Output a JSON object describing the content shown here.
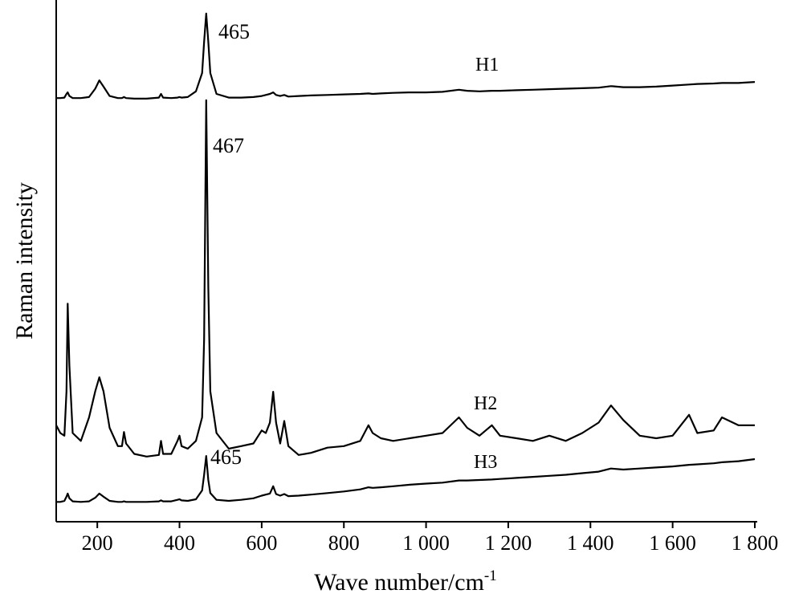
{
  "chart_data": {
    "type": "line",
    "x_label": {
      "text": "Wave number/cm",
      "superscript": "-1"
    },
    "y_label": "Raman intensity",
    "x": [
      100,
      110,
      120,
      125,
      128,
      132,
      140,
      160,
      180,
      195,
      205,
      215,
      230,
      250,
      260,
      265,
      270,
      290,
      320,
      350,
      355,
      360,
      380,
      395,
      400,
      405,
      420,
      440,
      455,
      460,
      465,
      470,
      475,
      490,
      520,
      550,
      580,
      600,
      610,
      620,
      628,
      635,
      645,
      655,
      665,
      690,
      720,
      760,
      800,
      840,
      860,
      870,
      890,
      920,
      960,
      1000,
      1040,
      1080,
      1100,
      1130,
      1160,
      1180,
      1220,
      1260,
      1300,
      1340,
      1380,
      1420,
      1450,
      1480,
      1520,
      1560,
      1600,
      1640,
      1660,
      1700,
      1720,
      1760,
      1800
    ],
    "xlim": [
      100,
      1800
    ],
    "ylim": [
      0,
      100
    ],
    "xticks": [
      200,
      400,
      600,
      800,
      {
        "value": 1000,
        "label": "1 000"
      },
      {
        "value": 1200,
        "label": "1 200"
      },
      {
        "value": 1400,
        "label": "1 400"
      },
      {
        "value": 1600,
        "label": "1 600"
      },
      {
        "value": 1800,
        "label": "1 800"
      }
    ],
    "series": [
      {
        "name": "H1",
        "color": "#000000",
        "values": [
          81.2,
          81.2,
          81.3,
          82.0,
          82.3,
          81.6,
          81.2,
          81.2,
          81.4,
          83,
          84.6,
          83.4,
          81.6,
          81.2,
          81.2,
          81.4,
          81.2,
          81.1,
          81.1,
          81.3,
          82,
          81.3,
          81.2,
          81.3,
          81.4,
          81.3,
          81.4,
          82.5,
          86,
          92,
          97.4,
          92,
          86,
          82,
          81.3,
          81.3,
          81.4,
          81.6,
          81.8,
          82,
          82.3,
          81.8,
          81.6,
          81.8,
          81.5,
          81.6,
          81.7,
          81.8,
          81.9,
          82.0,
          82.1,
          82.0,
          82.1,
          82.2,
          82.3,
          82.3,
          82.4,
          82.8,
          82.6,
          82.5,
          82.6,
          82.6,
          82.7,
          82.8,
          82.9,
          83.0,
          83.1,
          83.2,
          83.5,
          83.3,
          83.3,
          83.4,
          83.6,
          83.8,
          83.9,
          84.0,
          84.1,
          84.1,
          84.3
        ]
      },
      {
        "name": "H2",
        "color": "#000000",
        "values": [
          18.5,
          17,
          16.5,
          25,
          41.8,
          30,
          17,
          15.5,
          20,
          25,
          27.7,
          25,
          18,
          14.5,
          14.5,
          17.2,
          15,
          13,
          12.5,
          12.8,
          15.5,
          13,
          13,
          15.5,
          16.5,
          14.5,
          14,
          15.5,
          20,
          35,
          80.8,
          45,
          25,
          17,
          14,
          14.5,
          15,
          17.5,
          17,
          19,
          24.9,
          19,
          15,
          19.3,
          14.5,
          12.8,
          13.2,
          14.2,
          14.5,
          15.5,
          18.5,
          17,
          16,
          15.5,
          16,
          16.5,
          17,
          20,
          18,
          16.5,
          18.5,
          16.5,
          16,
          15.5,
          16.5,
          15.5,
          17,
          19,
          22.3,
          19.5,
          16.5,
          16,
          16.5,
          20.5,
          17,
          17.5,
          20,
          18.5,
          18.5
        ]
      },
      {
        "name": "H3",
        "color": "#000000",
        "values": [
          3.8,
          3.8,
          4,
          4.8,
          5.4,
          4.5,
          3.9,
          3.8,
          3.9,
          4.6,
          5.4,
          4.8,
          4,
          3.8,
          3.8,
          3.9,
          3.8,
          3.8,
          3.8,
          3.9,
          4.1,
          3.9,
          3.9,
          4.2,
          4.3,
          4.1,
          4,
          4.3,
          6,
          9,
          12.6,
          8,
          5.5,
          4.2,
          4.0,
          4.2,
          4.5,
          5,
          5.2,
          5.4,
          6.8,
          5.3,
          5,
          5.3,
          4.9,
          5,
          5.2,
          5.5,
          5.8,
          6.2,
          6.6,
          6.5,
          6.6,
          6.8,
          7.1,
          7.3,
          7.5,
          7.9,
          7.9,
          8.0,
          8.1,
          8.2,
          8.4,
          8.6,
          8.8,
          9,
          9.3,
          9.6,
          10.2,
          10,
          10.2,
          10.4,
          10.6,
          10.9,
          11,
          11.2,
          11.4,
          11.6,
          12
        ]
      }
    ],
    "annotations": [
      "465",
      "467",
      "465"
    ]
  }
}
